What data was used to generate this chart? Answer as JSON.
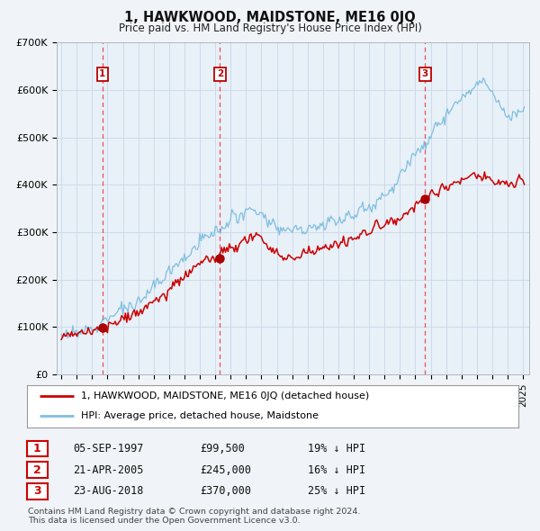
{
  "title": "1, HAWKWOOD, MAIDSTONE, ME16 0JQ",
  "subtitle": "Price paid vs. HM Land Registry's House Price Index (HPI)",
  "ylim": [
    0,
    700000
  ],
  "yticks": [
    0,
    100000,
    200000,
    300000,
    400000,
    500000,
    600000,
    700000
  ],
  "ytick_labels": [
    "£0",
    "£100K",
    "£200K",
    "£300K",
    "£400K",
    "£500K",
    "£600K",
    "£700K"
  ],
  "sale_color": "#cc0000",
  "hpi_color": "#7fbfdf",
  "vline_color": "#ee3333",
  "marker_color": "#aa0000",
  "sale1_year": 1997.67,
  "sale1_price": 99500,
  "sale1_label": "1",
  "sale2_year": 2005.31,
  "sale2_price": 245000,
  "sale2_label": "2",
  "sale3_year": 2018.64,
  "sale3_price": 370000,
  "sale3_label": "3",
  "legend_line1": "1, HAWKWOOD, MAIDSTONE, ME16 0JQ (detached house)",
  "legend_line2": "HPI: Average price, detached house, Maidstone",
  "table_rows": [
    {
      "num": "1",
      "date": "05-SEP-1997",
      "price": "£99,500",
      "hpi": "19% ↓ HPI"
    },
    {
      "num": "2",
      "date": "21-APR-2005",
      "price": "£245,000",
      "hpi": "16% ↓ HPI"
    },
    {
      "num": "3",
      "date": "23-AUG-2018",
      "price": "£370,000",
      "hpi": "25% ↓ HPI"
    }
  ],
  "footnote": "Contains HM Land Registry data © Crown copyright and database right 2024.\nThis data is licensed under the Open Government Licence v3.0.",
  "background_color": "#f0f4f8",
  "plot_bg_color": "#e8f0f8",
  "grid_color": "#c8d8e8"
}
